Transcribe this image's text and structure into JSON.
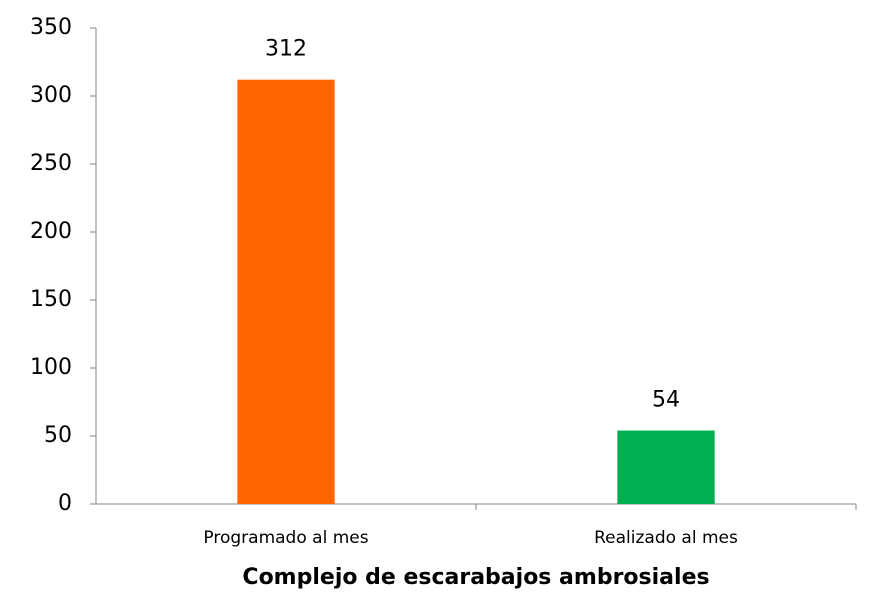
{
  "chart_data": {
    "type": "bar",
    "categories": [
      "Programado al mes",
      "Realizado al mes"
    ],
    "values": [
      312,
      54
    ],
    "colors": [
      "#ff6600",
      "#00b050"
    ],
    "x_label": "Complejo de escarabajos ambrosiales",
    "ylim": [
      0,
      350
    ],
    "yticks": [
      0,
      50,
      100,
      150,
      200,
      250,
      300,
      350
    ],
    "grid": false
  }
}
